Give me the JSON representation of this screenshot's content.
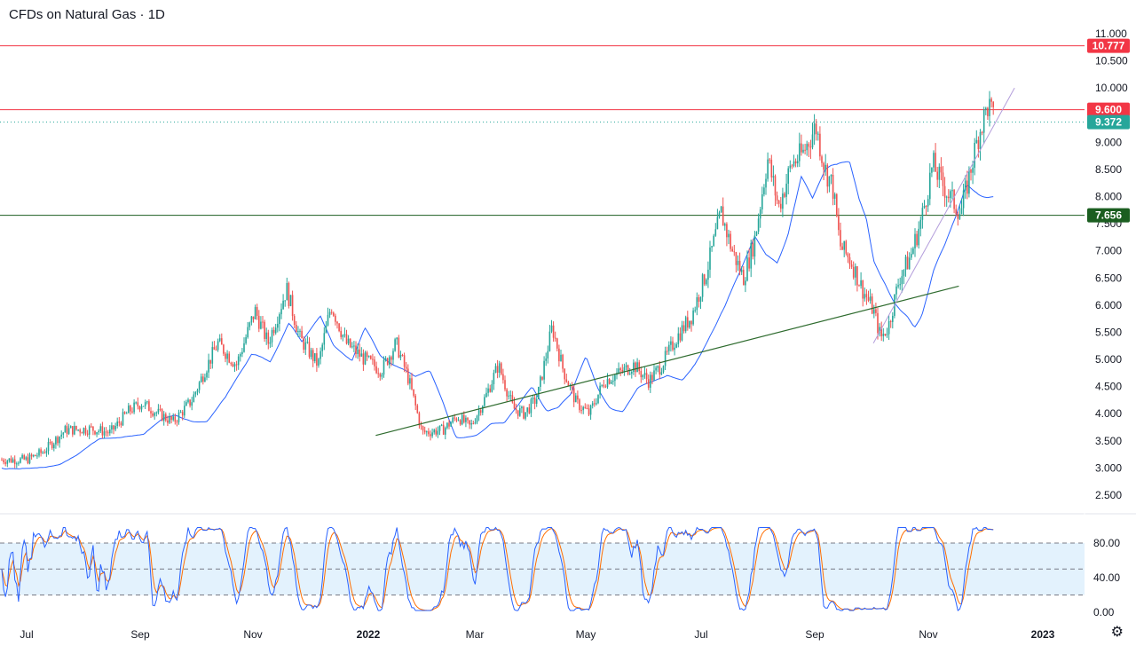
{
  "header": {
    "title": "CFDs on Natural Gas · 1D"
  },
  "colors": {
    "up": "#26a69a",
    "down": "#ef5350",
    "ma": "#2962ff",
    "resistance": "#f23645",
    "support": "#1b5e20",
    "trendline": "#2e6b2e",
    "stoch_k": "#2962ff",
    "stoch_d": "#ff6d00",
    "last_price": "#26a69a",
    "band_fill": "#e3f2fd"
  },
  "chart_data": [
    {
      "type": "candlestick",
      "title": "CFDs on Natural Gas · 1D",
      "x_tick_labels": [
        "Jul",
        "Sep",
        "Nov",
        "2022",
        "Mar",
        "May",
        "Jul",
        "Sep",
        "Nov",
        "2023"
      ],
      "y_tick_labels": [
        "11.000",
        "10.500",
        "10.000",
        "9.000",
        "8.500",
        "8.000",
        "7.500",
        "7.000",
        "6.500",
        "6.000",
        "5.500",
        "5.000",
        "4.500",
        "4.000",
        "3.500",
        "3.000",
        "2.500"
      ],
      "ylim": [
        2.3,
        11.1
      ],
      "price_levels": [
        {
          "label": "10.777",
          "value": 10.777,
          "kind": "resistance"
        },
        {
          "label": "9.600",
          "value": 9.6,
          "kind": "resistance"
        },
        {
          "label": "9.372",
          "value": 9.372,
          "kind": "last"
        },
        {
          "label": "7.656",
          "value": 7.656,
          "kind": "support"
        }
      ],
      "series_path": [
        [
          "2021-07-01",
          3.15
        ],
        [
          "2021-07-10",
          3.3
        ],
        [
          "2021-07-22",
          3.7
        ],
        [
          "2021-08-05",
          3.72
        ],
        [
          "2021-08-15",
          3.65
        ],
        [
          "2021-08-25",
          4.05
        ],
        [
          "2021-09-01",
          4.2
        ],
        [
          "2021-09-10",
          4.0
        ],
        [
          "2021-09-18",
          3.85
        ],
        [
          "2021-09-28",
          4.25
        ],
        [
          "2021-10-05",
          4.8
        ],
        [
          "2021-10-12",
          5.3
        ],
        [
          "2021-10-22",
          4.9
        ],
        [
          "2021-11-01",
          5.9
        ],
        [
          "2021-11-08",
          5.3
        ],
        [
          "2021-11-18",
          6.3
        ],
        [
          "2021-11-25",
          5.4
        ],
        [
          "2021-12-05",
          4.9
        ],
        [
          "2021-12-12",
          6.0
        ],
        [
          "2021-12-20",
          5.3
        ],
        [
          "2021-12-30",
          5.0
        ],
        [
          "2022-01-08",
          4.8
        ],
        [
          "2022-01-16",
          5.3
        ],
        [
          "2022-01-23",
          4.6
        ],
        [
          "2022-01-30",
          3.65
        ],
        [
          "2022-02-10",
          3.7
        ],
        [
          "2022-02-18",
          3.95
        ],
        [
          "2022-02-25",
          3.75
        ],
        [
          "2022-03-05",
          4.3
        ],
        [
          "2022-03-12",
          4.9
        ],
        [
          "2022-03-20",
          4.1
        ],
        [
          "2022-03-26",
          4.0
        ],
        [
          "2022-04-02",
          4.3
        ],
        [
          "2022-04-10",
          5.6
        ],
        [
          "2022-04-16",
          4.8
        ],
        [
          "2022-04-23",
          4.2
        ],
        [
          "2022-04-30",
          4.0
        ],
        [
          "2022-05-08",
          4.6
        ],
        [
          "2022-05-16",
          4.75
        ],
        [
          "2022-05-24",
          4.9
        ],
        [
          "2022-06-01",
          4.6
        ],
        [
          "2022-06-08",
          4.9
        ],
        [
          "2022-06-16",
          5.4
        ],
        [
          "2022-06-24",
          5.8
        ],
        [
          "2022-07-02",
          6.6
        ],
        [
          "2022-07-10",
          7.7
        ],
        [
          "2022-07-16",
          7.0
        ],
        [
          "2022-07-22",
          6.5
        ],
        [
          "2022-07-28",
          7.2
        ],
        [
          "2022-08-04",
          8.7
        ],
        [
          "2022-08-10",
          7.8
        ],
        [
          "2022-08-17",
          8.6
        ],
        [
          "2022-08-23",
          8.8
        ],
        [
          "2022-08-30",
          9.3
        ],
        [
          "2022-09-04",
          8.5
        ],
        [
          "2022-09-08",
          8.2
        ],
        [
          "2022-09-12",
          7.1
        ],
        [
          "2022-09-18",
          6.8
        ],
        [
          "2022-09-24",
          6.3
        ],
        [
          "2022-09-30",
          5.9
        ],
        [
          "2022-10-04",
          5.4
        ],
        [
          "2022-10-08",
          5.6
        ],
        [
          "2022-10-14",
          6.5
        ],
        [
          "2022-10-20",
          6.9
        ],
        [
          "2022-10-26",
          7.6
        ],
        [
          "2022-11-01",
          8.6
        ],
        [
          "2022-11-05",
          8.3
        ],
        [
          "2022-11-10",
          8.0
        ],
        [
          "2022-11-16",
          7.7
        ],
        [
          "2022-11-20",
          8.3
        ],
        [
          "2022-11-26",
          9.2
        ],
        [
          "2022-12-01",
          9.7
        ],
        [
          "2022-12-04",
          9.372
        ]
      ]
    },
    {
      "type": "line",
      "title": "",
      "y_tick_labels": [
        "80.00",
        "40.00",
        "0.00"
      ],
      "ylim": [
        -5,
        100
      ],
      "bands": [
        20,
        50,
        80
      ]
    }
  ],
  "footer": {
    "settings_icon": "gear-icon"
  }
}
